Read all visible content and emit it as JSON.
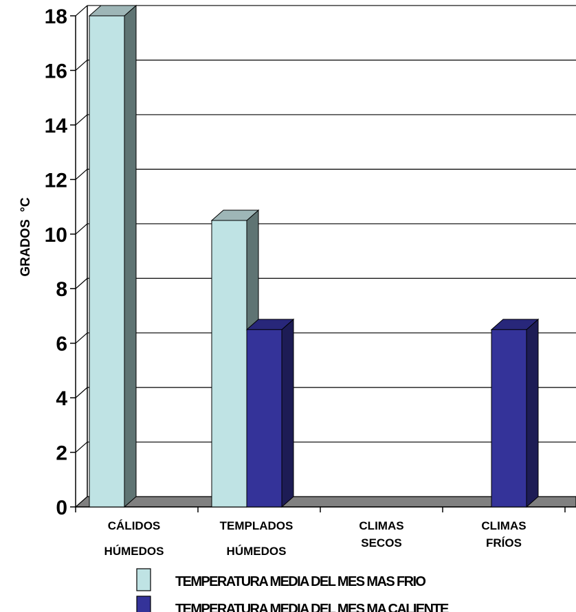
{
  "chart_data": {
    "type": "bar",
    "categories": [
      [
        "CÁLIDOS",
        "HÚMEDOS"
      ],
      [
        "TEMPLADOS",
        "HÚMEDOS"
      ],
      [
        "CLIMAS",
        "SECOS"
      ],
      [
        "CLIMAS",
        "FRÍOS"
      ]
    ],
    "series": [
      {
        "name": "TEMPERATURA MEDIA DEL MES MAS FRIO",
        "values": [
          18,
          10.5,
          0,
          0
        ],
        "color": "#bfe3e4",
        "side_color": "#5f7473",
        "top_color": "#9eb6b7"
      },
      {
        "name": "TEMPERATURA MEDIA DEL MES MA CALIENTE",
        "values": [
          0,
          6.5,
          0,
          6.5
        ],
        "color": "#343399",
        "side_color": "#1d1c55",
        "top_color": "#28277a"
      }
    ],
    "ylabel": "GRADOS  °C",
    "ylim": [
      0,
      18
    ],
    "yticks": [
      0,
      2,
      4,
      6,
      8,
      10,
      12,
      14,
      16,
      18
    ],
    "grid": true,
    "three_d": true,
    "legend_position": "bottom",
    "floor_color": "#808080"
  }
}
